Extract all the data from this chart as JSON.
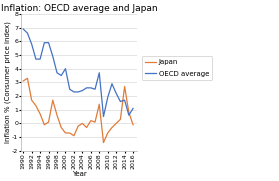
{
  "title": "Inflation: OECD average and Japan",
  "xlabel": "Year",
  "ylabel": "Inflation % (Consumer price index)",
  "years": [
    1990,
    1991,
    1992,
    1993,
    1994,
    1995,
    1996,
    1997,
    1998,
    1999,
    2000,
    2001,
    2002,
    2003,
    2004,
    2005,
    2006,
    2007,
    2008,
    2009,
    2010,
    2011,
    2012,
    2013,
    2014,
    2015,
    2016
  ],
  "japan": [
    3.1,
    3.3,
    1.7,
    1.3,
    0.7,
    -0.1,
    0.1,
    1.7,
    0.6,
    -0.3,
    -0.7,
    -0.7,
    -0.9,
    -0.2,
    0.0,
    -0.3,
    0.2,
    0.1,
    1.4,
    -1.4,
    -0.7,
    -0.3,
    0.0,
    0.3,
    2.7,
    0.8,
    -0.1
  ],
  "oecd": [
    6.9,
    6.6,
    5.8,
    4.7,
    4.7,
    5.9,
    5.9,
    4.9,
    3.7,
    3.5,
    4.0,
    2.5,
    2.3,
    2.3,
    2.4,
    2.6,
    2.6,
    2.5,
    3.7,
    0.5,
    1.9,
    2.9,
    2.2,
    1.6,
    1.7,
    0.6,
    1.1
  ],
  "japan_color": "#e07b39",
  "oecd_color": "#4472c4",
  "background_color": "#ffffff",
  "ylim": [
    -2,
    8
  ],
  "yticks": [
    -2,
    -1,
    0,
    1,
    2,
    3,
    4,
    5,
    6,
    7,
    8
  ],
  "title_fontsize": 6.5,
  "axis_fontsize": 5.0,
  "tick_fontsize": 4.5,
  "legend_fontsize": 5.0,
  "linewidth": 0.9
}
